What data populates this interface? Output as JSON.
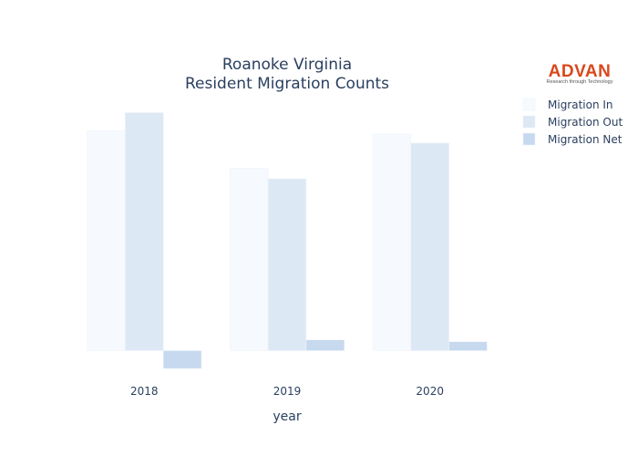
{
  "logo": {
    "name": "ADVAN",
    "tagline": "Research through Technology"
  },
  "chart_data": {
    "type": "bar",
    "title_line1": "Roanoke Virginia",
    "title_line2": "Resident Migration Counts",
    "xlabel": "year",
    "ylabel": "",
    "categories": [
      "2018",
      "2019",
      "2020"
    ],
    "series": [
      {
        "name": "Migration In",
        "values": [
          12300,
          10200,
          12100
        ],
        "color": "#f6f9fd"
      },
      {
        "name": "Migration Out",
        "values": [
          13300,
          9600,
          11600
        ],
        "color": "#dde8f5"
      },
      {
        "name": "Migration Net",
        "values": [
          -1000,
          600,
          500
        ],
        "color": "#c6d9ee"
      }
    ],
    "ylim": [
      -1300,
      14500
    ],
    "grid": false,
    "legend_position": "top-right"
  }
}
